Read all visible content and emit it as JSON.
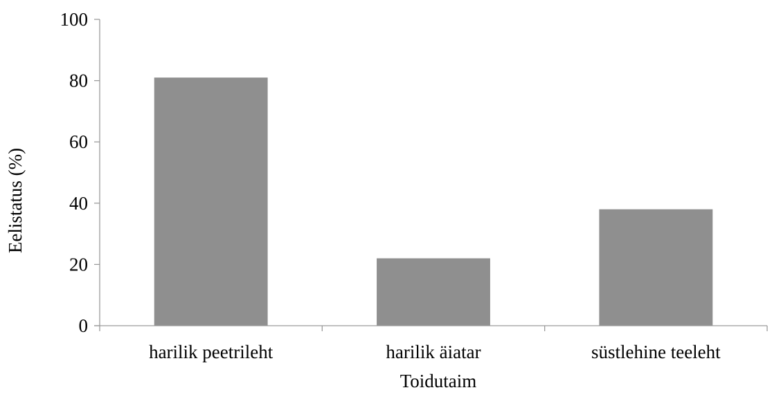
{
  "chart_data": {
    "type": "bar",
    "title": "",
    "xlabel": "Toidutaim",
    "ylabel": "Eelistatus (%)",
    "categories": [
      "harilik peetrileht",
      "harilik äiatar",
      "süstlehine teeleht"
    ],
    "values": [
      81,
      22,
      38
    ],
    "ylim": [
      0,
      100
    ],
    "yticks": [
      0,
      20,
      40,
      60,
      80,
      100
    ],
    "ytick_labels": [
      "0",
      "20",
      "40",
      "60",
      "80",
      "100"
    ],
    "grid": false,
    "legend": "none",
    "bar_color": "#8f8f8f",
    "axis_color": "#9a9a9a"
  }
}
